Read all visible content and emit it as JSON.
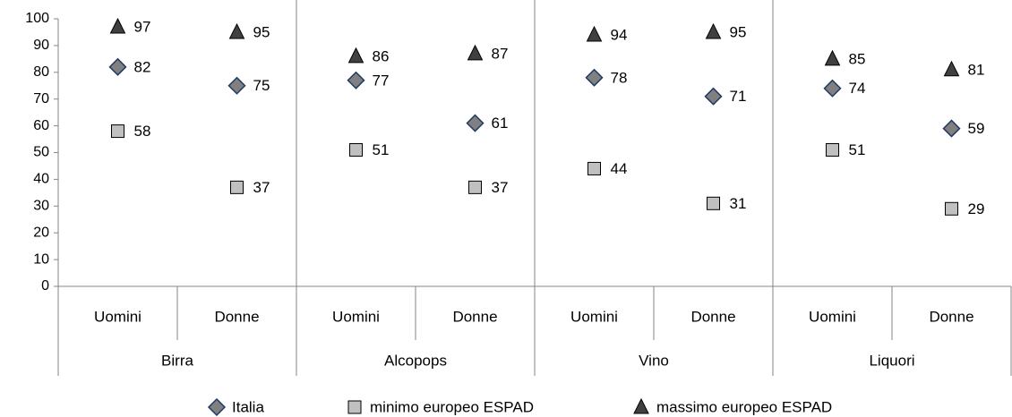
{
  "chart_data": {
    "type": "scatter",
    "categories": [
      "Uomini",
      "Donne",
      "Uomini",
      "Donne",
      "Uomini",
      "Donne",
      "Uomini",
      "Donne"
    ],
    "groups": [
      "Birra",
      "Alcopops",
      "Vino",
      "Liquori"
    ],
    "series": [
      {
        "name": "Italia",
        "color": "#808080",
        "stroke": "#1f3864",
        "marker": "diamond",
        "values": [
          82,
          75,
          77,
          61,
          78,
          71,
          74,
          59
        ]
      },
      {
        "name": "minimo europeo ESPAD",
        "color": "#c0c0c0",
        "stroke": "#000000",
        "marker": "square",
        "values": [
          58,
          37,
          51,
          37,
          44,
          31,
          51,
          29
        ]
      },
      {
        "name": "massimo europeo ESPAD",
        "color": "#404040",
        "stroke": "#000000",
        "marker": "triangle",
        "values": [
          97,
          95,
          86,
          87,
          94,
          95,
          85,
          81
        ]
      }
    ],
    "ylim": [
      0,
      100
    ],
    "yticks": [
      0,
      10,
      20,
      30,
      40,
      50,
      60,
      70,
      80,
      90,
      100
    ],
    "legend": "bottom"
  }
}
